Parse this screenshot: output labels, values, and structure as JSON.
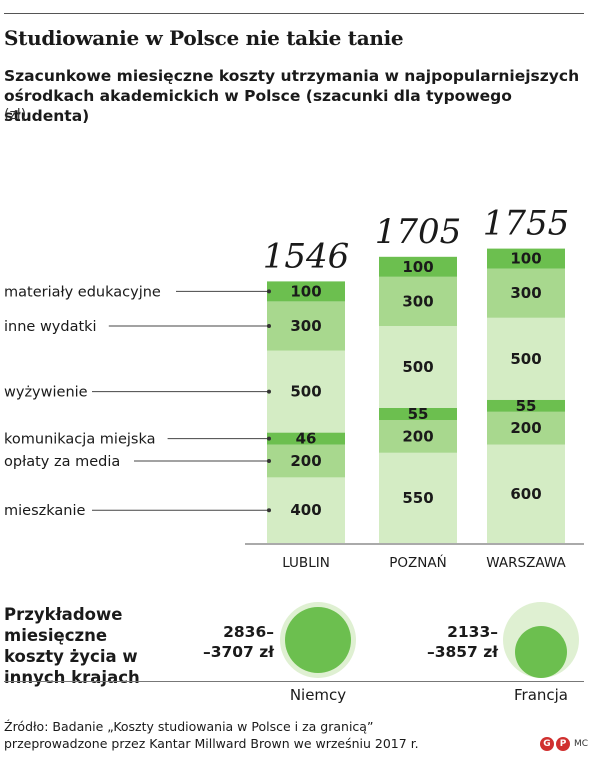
{
  "title": "Studiowanie w Polsce nie takie tanie",
  "subtitle": "Szacunkowe miesięczne koszty utrzymania w najpopularniejszych ośrodkach akademickich w Polsce (szacunki dla typowego studenta)",
  "unit": "(zł)",
  "colors": {
    "dark": "#6cbf4f",
    "mid": "#a8d88e",
    "light": "#d4ecc4",
    "circle_outer": "#dff0d2",
    "circle_inner": "#6cbf4f"
  },
  "chart_data": {
    "type": "bar",
    "stacked": true,
    "categories": [
      "LUBLIN",
      "POZNAŃ",
      "WARSZAWA"
    ],
    "totals": [
      "1546",
      "1705",
      "1755"
    ],
    "series": [
      {
        "name": "mieszkanie",
        "values": [
          400,
          550,
          600
        ],
        "shade": "light"
      },
      {
        "name": "opłaty za media",
        "values": [
          200,
          200,
          200
        ],
        "shade": "mid"
      },
      {
        "name": "komunikacja miejska",
        "values": [
          46,
          55,
          55
        ],
        "shade": "dark"
      },
      {
        "name": "wyżywienie",
        "values": [
          500,
          500,
          500
        ],
        "shade": "light"
      },
      {
        "name": "inne wydatki",
        "values": [
          300,
          300,
          300
        ],
        "shade": "mid"
      },
      {
        "name": "materiały edukacyjne",
        "values": [
          100,
          100,
          100
        ],
        "shade": "dark"
      }
    ]
  },
  "bottom": {
    "heading": "Przykładowe miesięczne koszty życia w innych krajach",
    "countries": [
      {
        "name": "Niemcy",
        "range_line1": "2836–",
        "range_line2": "–3707 zł",
        "min": 2836,
        "max": 3707
      },
      {
        "name": "Francja",
        "range_line1": "2133–",
        "range_line2": "–3857 zł",
        "min": 2133,
        "max": 3857
      }
    ]
  },
  "source_line1": "Źródło: Badanie „Koszty studiowania w Polsce i za granicą”",
  "source_line2": "przeprowadzone przez Kantar Millward Brown we wrześniu 2017 r.",
  "logo_left": "G",
  "logo_right": "P",
  "credit": "MC"
}
